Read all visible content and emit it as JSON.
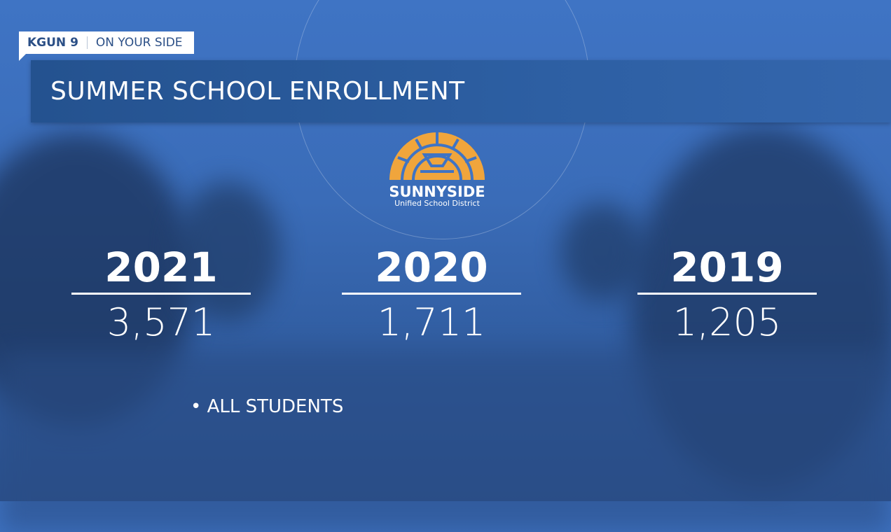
{
  "branding": {
    "station": "KGUN 9",
    "slogan": "ON YOUR SIDE"
  },
  "title": "SUMMER SCHOOL ENROLLMENT",
  "logo": {
    "name": "SUNNYSIDE",
    "subtitle": "Unified School District",
    "color": "#f0a53c"
  },
  "stats": [
    {
      "year": "2021",
      "value": "3,571"
    },
    {
      "year": "2020",
      "value": "1,711"
    },
    {
      "year": "2019",
      "value": "1,205"
    }
  ],
  "note": "• ALL STUDENTS"
}
